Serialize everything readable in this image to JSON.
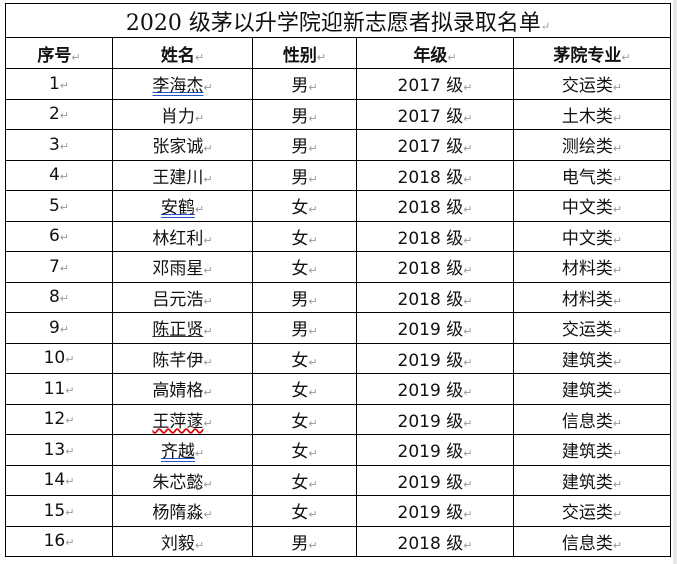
{
  "title": "2020 级茅以升学院迎新志愿者拟录取名单",
  "headers": [
    "序号",
    "姓名",
    "性别",
    "年级",
    "茅院专业"
  ],
  "rows": [
    {
      "no": "1",
      "name": "李海杰",
      "gender": "男",
      "grade": "2017 级",
      "major": "交运类",
      "mark": "blue"
    },
    {
      "no": "2",
      "name": "肖力",
      "gender": "男",
      "grade": "2017 级",
      "major": "土木类"
    },
    {
      "no": "3",
      "name": "张家诚",
      "gender": "男",
      "grade": "2017 级",
      "major": "测绘类"
    },
    {
      "no": "4",
      "name": "王建川",
      "gender": "男",
      "grade": "2018 级",
      "major": "电气类"
    },
    {
      "no": "5",
      "name": "安鹤",
      "gender": "女",
      "grade": "2018 级",
      "major": "中文类",
      "mark": "blue"
    },
    {
      "no": "6",
      "name": "林红利",
      "gender": "女",
      "grade": "2018 级",
      "major": "中文类"
    },
    {
      "no": "7",
      "name": "邓雨星",
      "gender": "女",
      "grade": "2018 级",
      "major": "材料类"
    },
    {
      "no": "8",
      "name": "吕元浩",
      "gender": "男",
      "grade": "2018 级",
      "major": "材料类"
    },
    {
      "no": "9",
      "name": "陈正贤",
      "gender": "男",
      "grade": "2019 级",
      "major": "交运类",
      "mark": "black"
    },
    {
      "no": "10",
      "name": "陈芊伊",
      "gender": "女",
      "grade": "2019 级",
      "major": "建筑类"
    },
    {
      "no": "11",
      "name": "高婧格",
      "gender": "女",
      "grade": "2019 级",
      "major": "建筑类"
    },
    {
      "no": "12",
      "name": "王萍蓫",
      "gender": "女",
      "grade": "2019 级",
      "major": "信息类",
      "mark": "red"
    },
    {
      "no": "13",
      "name": "齐越",
      "gender": "女",
      "grade": "2019 级",
      "major": "建筑类",
      "mark": "blue"
    },
    {
      "no": "14",
      "name": "朱芯懿",
      "gender": "女",
      "grade": "2019 级",
      "major": "建筑类"
    },
    {
      "no": "15",
      "name": "杨隋淼",
      "gender": "女",
      "grade": "2019 级",
      "major": "交运类"
    },
    {
      "no": "16",
      "name": "刘毅",
      "gender": "男",
      "grade": "2018 级",
      "major": "信息类"
    }
  ]
}
